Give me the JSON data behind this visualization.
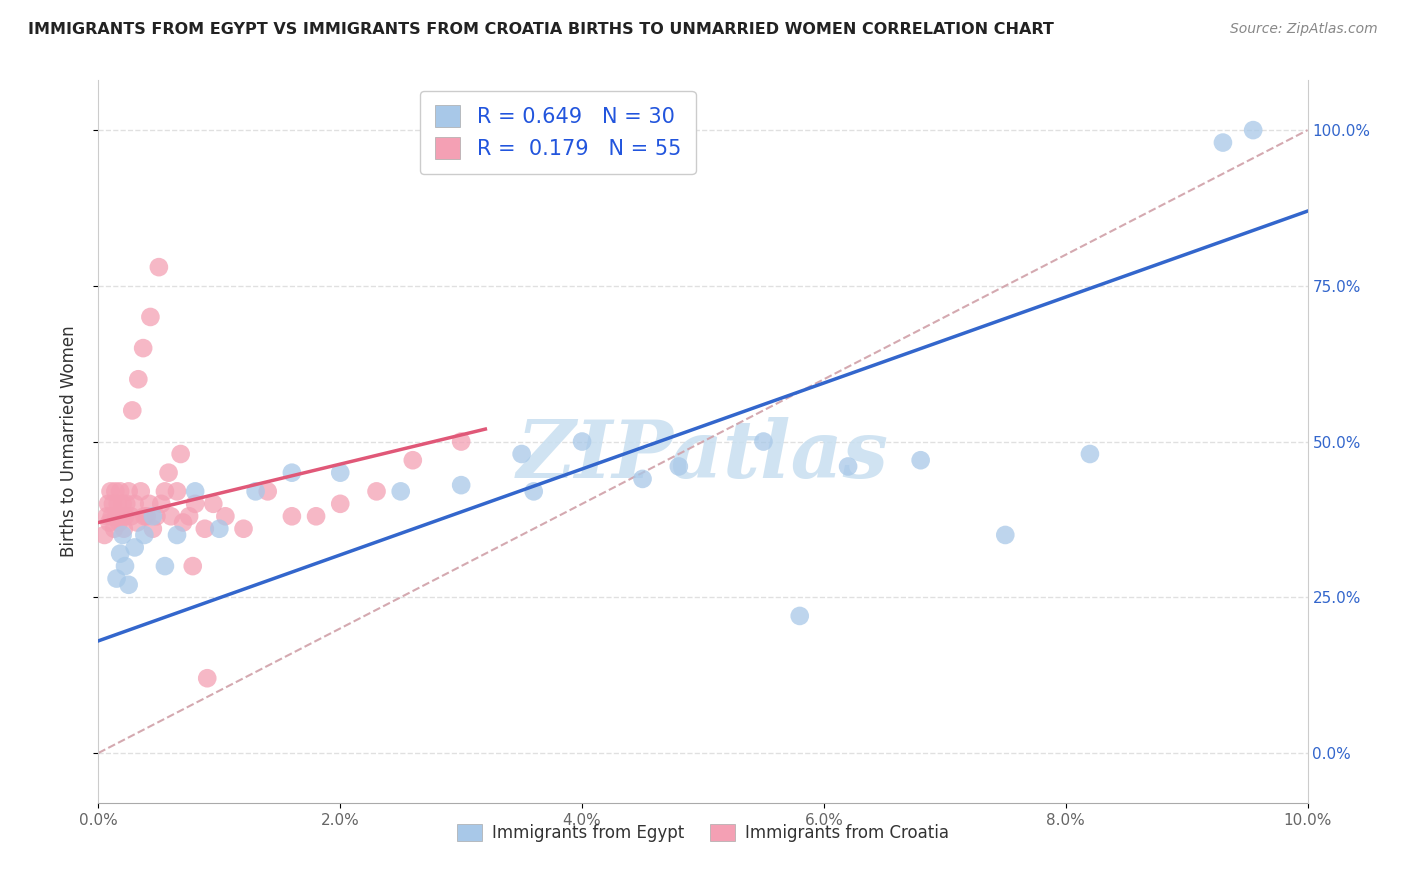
{
  "title": "IMMIGRANTS FROM EGYPT VS IMMIGRANTS FROM CROATIA BIRTHS TO UNMARRIED WOMEN CORRELATION CHART",
  "source": "Source: ZipAtlas.com",
  "ylabel": "Births to Unmarried Women",
  "egypt_R": "0.649",
  "egypt_N": "30",
  "croatia_R": "0.179",
  "croatia_N": "55",
  "egypt_color": "#a8c8e8",
  "croatia_color": "#f4a0b4",
  "egypt_line_color": "#3366cc",
  "croatia_line_color": "#e05878",
  "diagonal_color": "#d0a0a8",
  "watermark_color": "#c8dff0",
  "xlim": [
    0.0,
    10.0
  ],
  "ylim": [
    -8.0,
    108.0
  ],
  "xticks": [
    0,
    2,
    4,
    6,
    8,
    10
  ],
  "xtick_labels": [
    "0.0%",
    "2.0%",
    "4.0%",
    "6.0%",
    "8.0%",
    "10.0%"
  ],
  "yticks": [
    0,
    25,
    50,
    75,
    100
  ],
  "ytick_labels": [
    "0.0%",
    "25.0%",
    "50.0%",
    "75.0%",
    "100.0%"
  ],
  "egypt_x": [
    0.15,
    0.18,
    0.2,
    0.22,
    0.25,
    0.3,
    0.38,
    0.45,
    0.55,
    0.65,
    0.8,
    1.0,
    1.3,
    1.6,
    2.0,
    2.5,
    3.0,
    3.5,
    4.0,
    4.5,
    4.8,
    5.5,
    6.2,
    6.8,
    7.5,
    8.2,
    5.8,
    9.3,
    9.55,
    3.6
  ],
  "egypt_y": [
    28,
    32,
    35,
    30,
    27,
    33,
    35,
    38,
    30,
    35,
    42,
    36,
    42,
    45,
    45,
    42,
    43,
    48,
    50,
    44,
    46,
    50,
    46,
    47,
    35,
    48,
    22,
    98,
    100,
    42
  ],
  "croatia_x": [
    0.05,
    0.07,
    0.08,
    0.09,
    0.1,
    0.11,
    0.12,
    0.13,
    0.14,
    0.15,
    0.16,
    0.17,
    0.18,
    0.19,
    0.2,
    0.21,
    0.22,
    0.23,
    0.25,
    0.27,
    0.3,
    0.32,
    0.35,
    0.38,
    0.4,
    0.42,
    0.45,
    0.48,
    0.52,
    0.55,
    0.6,
    0.65,
    0.7,
    0.75,
    0.8,
    0.88,
    0.95,
    1.05,
    1.2,
    1.4,
    1.6,
    1.8,
    2.0,
    2.3,
    2.6,
    3.0,
    0.28,
    0.33,
    0.37,
    0.43,
    0.5,
    0.58,
    0.68,
    0.78,
    0.9
  ],
  "croatia_y": [
    35,
    38,
    40,
    37,
    42,
    38,
    40,
    36,
    42,
    38,
    40,
    37,
    42,
    38,
    40,
    36,
    38,
    40,
    42,
    38,
    40,
    37,
    42,
    38,
    38,
    40,
    36,
    38,
    40,
    42,
    38,
    42,
    37,
    38,
    40,
    36,
    40,
    38,
    36,
    42,
    38,
    38,
    40,
    42,
    47,
    50,
    55,
    60,
    65,
    70,
    78,
    45,
    48,
    30,
    12
  ],
  "egypt_line_x": [
    0,
    10
  ],
  "egypt_line_y": [
    18,
    87
  ],
  "croatia_line_x": [
    0,
    3.2
  ],
  "croatia_line_y": [
    37,
    52
  ]
}
